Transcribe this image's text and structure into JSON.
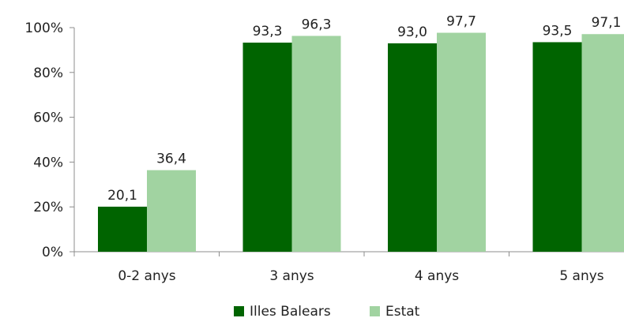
{
  "chart_data": {
    "type": "bar",
    "categories": [
      "0-2 anys",
      "3 anys",
      "4 anys",
      "5 anys"
    ],
    "series": [
      {
        "name": "Illes Balears",
        "values": [
          20.1,
          93.3,
          93.0,
          93.5
        ],
        "labels": [
          "20,1",
          "93,3",
          "93,0",
          "93,5"
        ],
        "color": "#006400"
      },
      {
        "name": "Estat",
        "values": [
          36.4,
          96.3,
          97.7,
          97.1
        ],
        "labels": [
          "36,4",
          "96,3",
          "97,7",
          "97,1"
        ],
        "color": "#a1d3a1"
      }
    ],
    "y_ticks": [
      0,
      20,
      40,
      60,
      80,
      100
    ],
    "y_tick_labels": [
      "0%",
      "20%",
      "40%",
      "60%",
      "80%",
      "100%"
    ],
    "ylim": [
      0,
      100
    ],
    "grid": false,
    "legend_position": "bottom"
  }
}
